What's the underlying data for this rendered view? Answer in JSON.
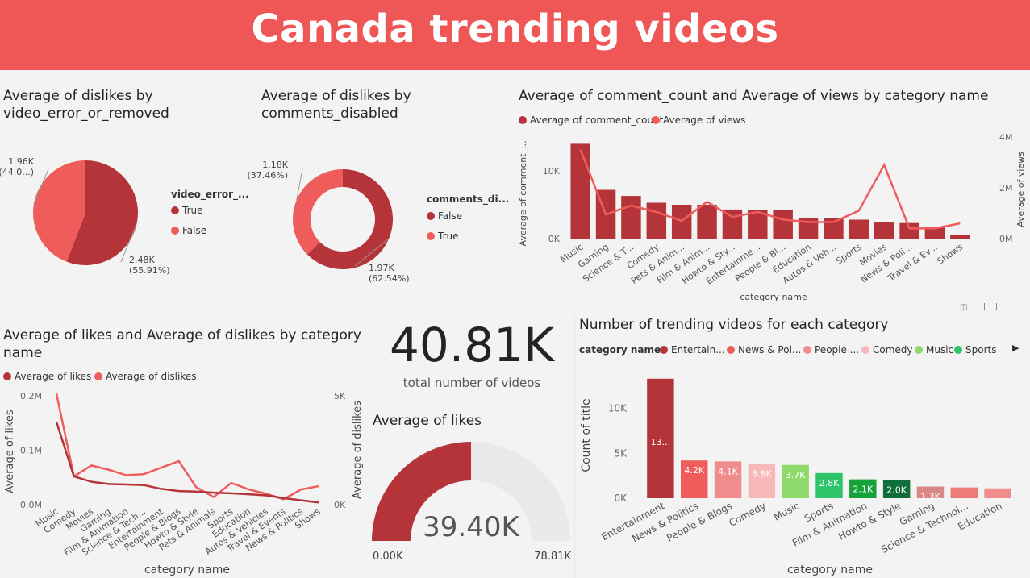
{
  "header": {
    "title": "Canada trending videos"
  },
  "card": {
    "value": "40.81K",
    "label": "total number of videos"
  },
  "colors": {
    "dark": "#b5343a",
    "light": "#ee5c5c",
    "banner": "#ef5656"
  },
  "legends": {
    "pie1_title": "video_error_...",
    "pie1_true": "True",
    "pie1_false": "False",
    "pie2_title": "comments_di...",
    "pie2_false": "False",
    "pie2_true": "True",
    "combo_a": "Average of comment_count",
    "combo_b": "Average of views",
    "likes_a": "Average of likes",
    "likes_b": "Average of dislikes",
    "count_title": "category name",
    "count_items": [
      "Entertain...",
      "News & Pol...",
      "People ...",
      "Comedy",
      "Music",
      "Sports"
    ]
  },
  "chart_data": [
    {
      "type": "pie",
      "title": "Average of dislikes by video_error_or_removed",
      "legend_title": "video_error_...",
      "slices": [
        {
          "name": "True",
          "value": 2480,
          "label": "2.48K",
          "pct_label": "(55.91%)"
        },
        {
          "name": "False",
          "value": 1960,
          "label": "1.96K",
          "pct_label": "(44.0...)"
        }
      ]
    },
    {
      "type": "pie",
      "title": "Average of dislikes by comments_disabled",
      "legend_title": "comments_di...",
      "donut": true,
      "slices": [
        {
          "name": "False",
          "value": 1970,
          "label": "1.97K",
          "pct_label": "(62.54%)"
        },
        {
          "name": "True",
          "value": 1180,
          "label": "1.18K",
          "pct_label": "(37.46%)"
        }
      ]
    },
    {
      "type": "bar",
      "title": "Average of comment_count and Average of views by category name",
      "xlabel": "category name",
      "ylabel": "Average of comment_...",
      "y2label": "Average of views",
      "categories": [
        "Music",
        "Gaming",
        "Science & T...",
        "Comedy",
        "Pets & Anim...",
        "Film & Anim...",
        "Howto & Sty...",
        "Entertainme...",
        "People & Bl...",
        "Education",
        "Autos & Veh...",
        "Sports",
        "Movies",
        "News & Poli...",
        "Travel & Ev...",
        "Shows"
      ],
      "series": [
        {
          "name": "Average of comment_count",
          "kind": "bar",
          "values": [
            14000,
            7200,
            6300,
            5300,
            5000,
            5000,
            4300,
            4200,
            4200,
            3100,
            3000,
            2800,
            2500,
            2300,
            1700,
            600
          ]
        },
        {
          "name": "Average of views",
          "kind": "line",
          "axis": "right",
          "values": [
            3500000,
            950000,
            1300000,
            1050000,
            700000,
            1450000,
            850000,
            1050000,
            750000,
            650000,
            650000,
            1100000,
            2900000,
            400000,
            400000,
            600000
          ]
        }
      ],
      "yticks": [
        "0K",
        "10K"
      ],
      "y2ticks": [
        "0M",
        "2M",
        "4M"
      ],
      "ylim": [
        0,
        15000
      ],
      "y2lim": [
        0,
        4000000
      ]
    },
    {
      "type": "line",
      "title": "Average of likes and Average of dislikes by category name",
      "xlabel": "category name",
      "ylabel": "Average of likes",
      "y2label": "Average of dislikes",
      "categories": [
        "Music",
        "Comedy",
        "Movies",
        "Gaming",
        "Film & Animation",
        "Science & Tech...",
        "Entertainment",
        "People & Blogs",
        "Howto & Style",
        "Pets & Animals",
        "Sports",
        "Education",
        "Autos & Vehicles",
        "Travel & Events",
        "News & Politics",
        "Shows"
      ],
      "series": [
        {
          "name": "Average of likes",
          "axis": "left",
          "values": [
            152000,
            52000,
            42000,
            38000,
            37000,
            36000,
            29000,
            25000,
            24000,
            22000,
            21000,
            19000,
            17000,
            12000,
            8000,
            4000
          ]
        },
        {
          "name": "Average of dislikes",
          "axis": "right",
          "values": [
            5100,
            1300,
            1800,
            1600,
            1350,
            1400,
            1700,
            2000,
            800,
            350,
            1000,
            700,
            500,
            250,
            700,
            850
          ]
        }
      ],
      "yticks": [
        "0.0M",
        "0.1M",
        "0.2M"
      ],
      "y2ticks": [
        "0K",
        "5K"
      ],
      "ylim": [
        0,
        200000
      ],
      "y2lim": [
        0,
        5000
      ]
    },
    {
      "type": "gauge",
      "title": "Average of likes",
      "value": 39400,
      "value_label": "39.40K",
      "min_label": "0.00K",
      "max_label": "78.81K",
      "min": 0,
      "max": 78810
    },
    {
      "type": "bar",
      "title": "Number of trending videos for each category",
      "xlabel": "category name",
      "ylabel": "Count of title",
      "categories": [
        "Entertainment",
        "News & Politics",
        "People & Blogs",
        "Comedy",
        "Music",
        "Sports",
        "Film & Animation",
        "Howto & Style",
        "Gaming",
        "Science & Technol...",
        "Education"
      ],
      "values": [
        13300,
        4200,
        4100,
        3800,
        3700,
        2800,
        2100,
        2000,
        1300,
        1200,
        1100
      ],
      "labels": [
        "13...",
        "4.2K",
        "4.1K",
        "3.8K",
        "3.7K",
        "2.8K",
        "2.1K",
        "2.0K",
        "1.3K",
        "",
        ""
      ],
      "bar_colors": [
        "#b5343a",
        "#ee5c5c",
        "#f08c8c",
        "#f6b8b8",
        "#8fd96b",
        "#2ec56a",
        "#15a339",
        "#0f6e3a",
        "#d98787",
        "#ee7a7a",
        "#f08c8c"
      ],
      "yticks": [
        "0K",
        "5K",
        "10K"
      ],
      "ylim": [
        0,
        14000
      ]
    }
  ]
}
